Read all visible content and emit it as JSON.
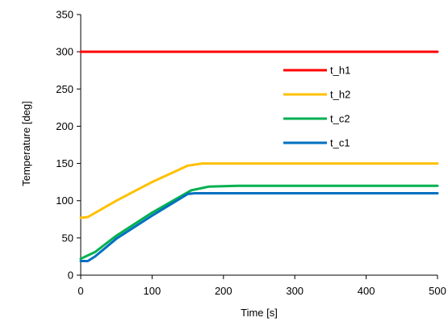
{
  "chart_data": {
    "type": "line",
    "xlabel": "Time [s]",
    "ylabel": "Temperature [deg]",
    "xlim": [
      0,
      500
    ],
    "ylim": [
      0,
      350
    ],
    "xticks": [
      0,
      100,
      200,
      300,
      400,
      500
    ],
    "yticks": [
      0,
      50,
      100,
      150,
      200,
      250,
      300,
      350
    ],
    "grid": false,
    "legend_position": "center-right",
    "series": [
      {
        "name": "t_h1",
        "color": "#ff0000",
        "x": [
          0,
          500
        ],
        "y": [
          300,
          300
        ]
      },
      {
        "name": "t_h2",
        "color": "#ffc000",
        "x": [
          0,
          10,
          50,
          100,
          150,
          170,
          200,
          300,
          400,
          500
        ],
        "y": [
          77,
          78,
          100,
          125,
          147,
          150,
          150,
          150,
          150,
          150
        ]
      },
      {
        "name": "t_c2",
        "color": "#00b050",
        "x": [
          0,
          20,
          50,
          100,
          155,
          180,
          220,
          300,
          400,
          500
        ],
        "y": [
          22,
          31,
          53,
          84,
          114,
          119,
          120,
          120,
          120,
          120
        ]
      },
      {
        "name": "t_c1",
        "color": "#0070c0",
        "x": [
          0,
          10,
          20,
          50,
          100,
          150,
          160,
          200,
          300,
          400,
          500
        ],
        "y": [
          19,
          19,
          25,
          49,
          80,
          109,
          110,
          110,
          110,
          110,
          110
        ]
      }
    ]
  }
}
